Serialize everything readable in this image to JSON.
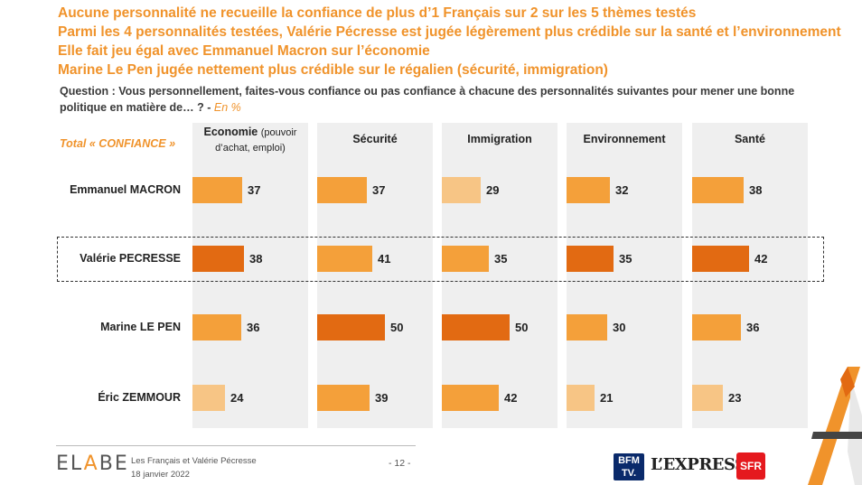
{
  "headlines": [
    "Aucune personnalité ne recueille la confiance de plus d’1 Français sur 2 sur les 5 thèmes testés",
    "Parmi les 4 personnalités testées, Valérie Pécresse est jugée légèrement plus crédible sur la santé et l’environnement",
    "Elle fait jeu égal avec Emmanuel Macron sur l’économie",
    "Marine Le Pen jugée nettement plus crédible sur le régalien (sécurité, immigration)"
  ],
  "question": {
    "text": "Question : Vous personnellement, faites-vous confiance ou pas confiance à chacune des personnalités suivantes pour mener une bonne politique en matière de… ? -",
    "unit": "En %"
  },
  "total_label": "Total « CONFIANCE »",
  "colors": {
    "light": "#F7C585",
    "medium": "#F4A03A",
    "dark": "#E26A12",
    "accent": "#F0932B",
    "column_bg": "#EFEFEF"
  },
  "chart_data": {
    "type": "bar",
    "orientation": "horizontal",
    "categories": [
      {
        "title": "Economie",
        "subtitle": "(pouvoir d’achat, emploi)"
      },
      {
        "title": "Sécurité",
        "subtitle": ""
      },
      {
        "title": "Immigration",
        "subtitle": ""
      },
      {
        "title": "Environnement",
        "subtitle": ""
      },
      {
        "title": "Santé",
        "subtitle": ""
      }
    ],
    "series": [
      {
        "name": "Emmanuel MACRON",
        "values": [
          37,
          37,
          29,
          32,
          38
        ],
        "shades": [
          "medium",
          "medium",
          "light",
          "medium",
          "medium"
        ],
        "highlighted": false
      },
      {
        "name": "Valérie PECRESSE",
        "values": [
          38,
          41,
          35,
          35,
          42
        ],
        "shades": [
          "dark",
          "medium",
          "medium",
          "dark",
          "dark"
        ],
        "highlighted": true
      },
      {
        "name": "Marine LE PEN",
        "values": [
          36,
          50,
          50,
          30,
          36
        ],
        "shades": [
          "medium",
          "dark",
          "dark",
          "medium",
          "medium"
        ],
        "highlighted": false
      },
      {
        "name": "Éric ZEMMOUR",
        "values": [
          24,
          39,
          42,
          21,
          23
        ],
        "shades": [
          "light",
          "medium",
          "medium",
          "light",
          "light"
        ],
        "highlighted": false
      }
    ]
  },
  "footer": {
    "logo_text_1": "EL",
    "logo_text_2": "A",
    "logo_text_3": "BE",
    "title": "Les Français et Valérie Pécresse",
    "date": "18 janvier 2022",
    "page": "- 12 -",
    "bfm_line1": "BFM",
    "bfm_line2": "TV.",
    "lexpress": "L’EXPRESS",
    "sfr": "SFR"
  }
}
